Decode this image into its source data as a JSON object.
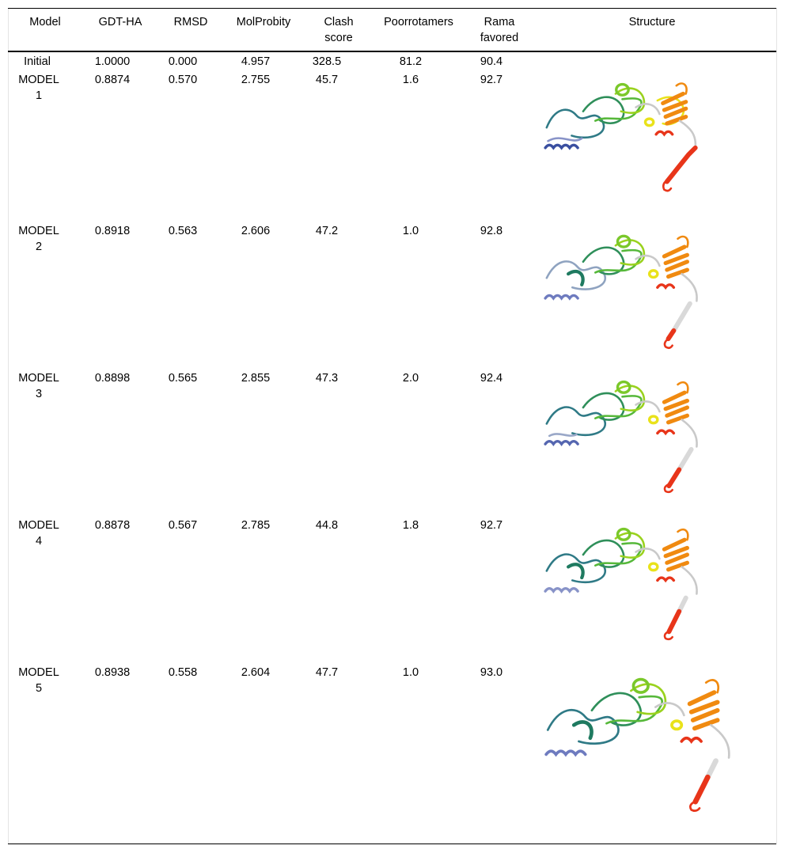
{
  "table": {
    "headers": {
      "model": "Model",
      "gdt": "GDT-HA",
      "rmsd": "RMSD",
      "molprobity": "MolProbity",
      "clash_1": "Clash",
      "clash_2": "score",
      "poor": "Poorrotamers",
      "rama_1": "Rama",
      "rama_2": "favored",
      "structure": "Structure"
    },
    "rows": [
      {
        "model_1": "Initial",
        "model_2": "",
        "gdt": "1.0000",
        "rmsd": "0.000",
        "molprobity": "4.957",
        "clash": "328.5",
        "poor": "81.2",
        "rama": "90.4"
      },
      {
        "model_1": "MODEL",
        "model_2": "1",
        "gdt": "0.8874",
        "rmsd": "0.570",
        "molprobity": "2.755",
        "clash": "45.7",
        "poor": "1.6",
        "rama": "92.7"
      },
      {
        "model_1": "MODEL",
        "model_2": "2",
        "gdt": "0.8918",
        "rmsd": "0.563",
        "molprobity": "2.606",
        "clash": "47.2",
        "poor": "1.0",
        "rama": "92.8"
      },
      {
        "model_1": "MODEL",
        "model_2": "3",
        "gdt": "0.8898",
        "rmsd": "0.565",
        "molprobity": "2.855",
        "clash": "47.3",
        "poor": "2.0",
        "rama": "92.4"
      },
      {
        "model_1": "MODEL",
        "model_2": "4",
        "gdt": "0.8878",
        "rmsd": "0.567",
        "molprobity": "2.785",
        "clash": "44.8",
        "poor": "1.8",
        "rama": "92.7"
      },
      {
        "model_1": "MODEL",
        "model_2": "5",
        "gdt": "0.8938",
        "rmsd": "0.558",
        "molprobity": "2.604",
        "clash": "47.7",
        "poor": "1.0",
        "rama": "93.0"
      }
    ]
  },
  "structure_colors": [
    "#3a4fa0",
    "#2f7a86",
    "#2f8f5a",
    "#56b83a",
    "#9ad21e",
    "#e9e21a",
    "#f08a10",
    "#e8351a",
    "#c9c9c9"
  ]
}
